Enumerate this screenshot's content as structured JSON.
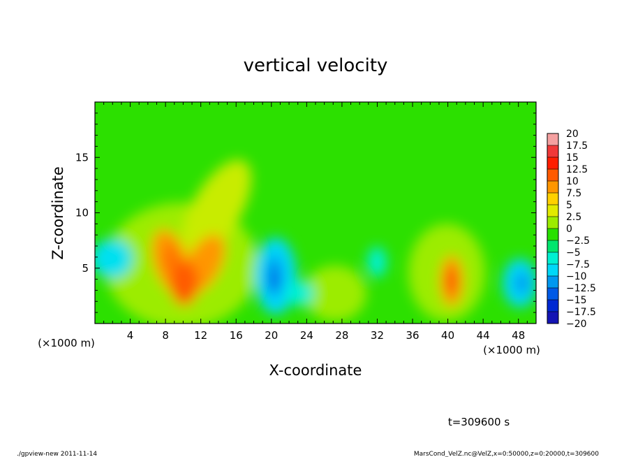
{
  "chart_data": {
    "type": "heatmap",
    "title": "vertical velocity",
    "xlabel": "X-coordinate",
    "ylabel": "Z-coordinate",
    "x_unit_left": "(×1000 m)",
    "x_unit_right": "(×1000 m)",
    "xlim": [
      0,
      50
    ],
    "ylim": [
      0,
      20
    ],
    "xticks": [
      4,
      8,
      12,
      16,
      20,
      24,
      28,
      32,
      36,
      40,
      44,
      48
    ],
    "xtick_labels": [
      "4",
      "8",
      "12",
      "16",
      "20",
      "24",
      "28",
      "32",
      "36",
      "40",
      "44",
      "48"
    ],
    "yticks": [
      5,
      10,
      15
    ],
    "ytick_labels": [
      "5",
      "10",
      "15"
    ],
    "colorbar": {
      "levels": [
        20,
        17.5,
        15,
        12.5,
        10,
        7.5,
        5,
        2.5,
        0,
        -2.5,
        -5,
        -7.5,
        -10,
        -12.5,
        -15,
        -17.5,
        -20
      ],
      "labels": [
        "20",
        "17.5",
        "15",
        "12.5",
        "10",
        "7.5",
        "5",
        "2.5",
        "0",
        "−2.5",
        "−5",
        "−7.5",
        "−10",
        "−12.5",
        "−15",
        "−17.5",
        "−20"
      ],
      "colors": [
        "#f4a0a0",
        "#f03838",
        "#ff1e00",
        "#ff5a00",
        "#ff9600",
        "#ffd000",
        "#e2ea00",
        "#9cec00",
        "#28e000",
        "#00e66e",
        "#00f0d2",
        "#00d8f8",
        "#0098f0",
        "#005ae6",
        "#0028d2",
        "#1414b4",
        "#6e14be"
      ]
    },
    "features": [
      {
        "kind": "updraft",
        "x": 10.5,
        "z": 3.8,
        "peak": 13
      },
      {
        "kind": "updraft",
        "x": 40.5,
        "z": 3.7,
        "peak": 12
      },
      {
        "kind": "downdraft",
        "x": 20.2,
        "z": 4.2,
        "peak": -11
      },
      {
        "kind": "downdraft",
        "x": 49,
        "z": 3.5,
        "peak": -7
      },
      {
        "kind": "downdraft",
        "x": 1.5,
        "z": 6,
        "peak": -6
      }
    ]
  },
  "time_label": "t=309600 s",
  "footer": {
    "left": "./gpview-new  2011-11-14",
    "right": "MarsCond_VelZ.nc@VelZ,x=0:50000,z=0:20000,t=309600"
  }
}
